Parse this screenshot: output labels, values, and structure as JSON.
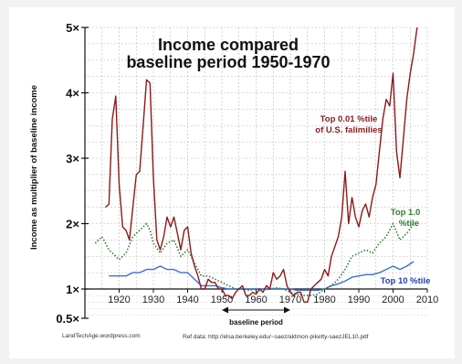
{
  "chart_data": {
    "type": "line",
    "title_lines": [
      "Income compared",
      "baseline period 1950-1970"
    ],
    "ylabel": "Income as multiplier of baseline income",
    "xlabel": "",
    "xlim": [
      1910,
      2010
    ],
    "ylim": [
      0.5,
      5
    ],
    "y_ticks": [
      {
        "value": 5,
        "label": "5×"
      },
      {
        "value": 4,
        "label": "4×"
      },
      {
        "value": 3,
        "label": "3×"
      },
      {
        "value": 2,
        "label": "2×"
      },
      {
        "value": 1,
        "label": "1×"
      },
      {
        "value": 0.5,
        "label": "0.5×"
      }
    ],
    "x_ticks": [
      "1920",
      "1930",
      "1940",
      "1950",
      "1960",
      "1970",
      "1980",
      "1990",
      "2000",
      "2010"
    ],
    "grid": true,
    "baseline_label": "baseline period",
    "baseline_range": [
      1950,
      1970
    ],
    "source_left": "LandTechAge.wordpress.com",
    "source_right": "Ref data: http://elsa.berkeley.edu/~saez/aktmon-piketty-saezJEL10.pdf",
    "series": [
      {
        "label_lines": [
          "Top 0.01 %tile",
          "of U.S. falimilies"
        ],
        "color": "#8b1a1a",
        "style": "solid",
        "x": [
          1916,
          1917,
          1918,
          1919,
          1920,
          1921,
          1922,
          1923,
          1924,
          1925,
          1926,
          1927,
          1928,
          1929,
          1930,
          1931,
          1932,
          1933,
          1934,
          1935,
          1936,
          1937,
          1938,
          1939,
          1940,
          1941,
          1942,
          1943,
          1944,
          1945,
          1946,
          1947,
          1948,
          1949,
          1950,
          1951,
          1952,
          1953,
          1954,
          1955,
          1956,
          1957,
          1958,
          1959,
          1960,
          1961,
          1962,
          1963,
          1964,
          1965,
          1966,
          1967,
          1968,
          1969,
          1970,
          1971,
          1972,
          1973,
          1974,
          1975,
          1976,
          1977,
          1978,
          1979,
          1980,
          1981,
          1982,
          1983,
          1984,
          1985,
          1986,
          1987,
          1988,
          1989,
          1990,
          1991,
          1992,
          1993,
          1994,
          1995,
          1996,
          1997,
          1998,
          1999,
          2000,
          2001,
          2002,
          2003,
          2004,
          2005,
          2006,
          2007
        ],
        "values": [
          2.25,
          2.3,
          3.6,
          3.95,
          2.6,
          1.95,
          1.9,
          1.75,
          2.25,
          2.75,
          2.8,
          3.5,
          4.2,
          4.15,
          2.7,
          1.75,
          1.6,
          1.8,
          2.1,
          1.95,
          2.1,
          1.85,
          1.6,
          1.9,
          1.95,
          1.55,
          1.35,
          1.2,
          1.0,
          1.0,
          1.15,
          1.1,
          1.1,
          1.0,
          1.0,
          0.9,
          0.9,
          0.85,
          0.95,
          1.0,
          1.05,
          0.9,
          0.9,
          0.95,
          0.92,
          1.0,
          0.95,
          1.05,
          1.0,
          1.25,
          1.15,
          1.2,
          1.3,
          1.05,
          0.95,
          0.9,
          0.95,
          0.95,
          0.8,
          0.8,
          1.0,
          1.05,
          1.1,
          1.15,
          1.3,
          1.2,
          1.5,
          1.65,
          1.8,
          2.1,
          2.8,
          2.0,
          2.4,
          2.1,
          1.95,
          2.2,
          2.3,
          2.1,
          2.4,
          2.6,
          3.1,
          3.6,
          3.9,
          3.8,
          4.3,
          3.1,
          2.7,
          3.3,
          3.9,
          4.3,
          4.6,
          5.0
        ]
      },
      {
        "label_lines": [
          "Top 1.0",
          "%tile"
        ],
        "color": "#2e7d32",
        "style": "dotted",
        "x": [
          1913,
          1915,
          1917,
          1918,
          1920,
          1922,
          1924,
          1926,
          1928,
          1929,
          1930,
          1932,
          1934,
          1936,
          1938,
          1940,
          1942,
          1944,
          1946,
          1948,
          1950,
          1952,
          1954,
          1956,
          1958,
          1960,
          1962,
          1964,
          1966,
          1968,
          1970,
          1972,
          1974,
          1976,
          1978,
          1980,
          1982,
          1984,
          1986,
          1988,
          1990,
          1992,
          1994,
          1996,
          1998,
          2000,
          2002,
          2004,
          2006
        ],
        "values": [
          1.7,
          1.8,
          1.6,
          1.55,
          1.45,
          1.55,
          1.8,
          1.9,
          2.0,
          1.9,
          1.7,
          1.55,
          1.7,
          1.75,
          1.5,
          1.6,
          1.4,
          1.2,
          1.2,
          1.15,
          1.1,
          1.05,
          1.0,
          1.0,
          0.98,
          1.0,
          0.98,
          1.0,
          1.02,
          1.0,
          0.95,
          0.92,
          0.9,
          0.9,
          0.92,
          1.0,
          1.05,
          1.15,
          1.3,
          1.5,
          1.55,
          1.6,
          1.55,
          1.7,
          1.8,
          2.0,
          1.75,
          1.85,
          2.0
        ]
      },
      {
        "label_lines": [
          "Top 10 %tile"
        ],
        "color": "#3a6fd8",
        "style": "solid",
        "x": [
          1917,
          1920,
          1922,
          1924,
          1926,
          1928,
          1930,
          1932,
          1934,
          1936,
          1938,
          1940,
          1942,
          1944,
          1946,
          1948,
          1950,
          1952,
          1954,
          1956,
          1958,
          1960,
          1962,
          1964,
          1966,
          1968,
          1970,
          1972,
          1974,
          1976,
          1978,
          1980,
          1982,
          1984,
          1986,
          1988,
          1990,
          1992,
          1994,
          1996,
          1998,
          2000,
          2002,
          2004,
          2006
        ],
        "values": [
          1.2,
          1.2,
          1.2,
          1.25,
          1.25,
          1.3,
          1.3,
          1.35,
          1.3,
          1.3,
          1.25,
          1.25,
          1.15,
          1.05,
          1.05,
          1.05,
          1.02,
          1.0,
          1.0,
          1.0,
          1.0,
          1.0,
          1.0,
          1.0,
          1.0,
          1.0,
          1.0,
          0.98,
          0.98,
          0.98,
          0.98,
          1.0,
          1.05,
          1.08,
          1.12,
          1.18,
          1.2,
          1.22,
          1.22,
          1.25,
          1.3,
          1.35,
          1.3,
          1.35,
          1.42
        ]
      }
    ]
  }
}
